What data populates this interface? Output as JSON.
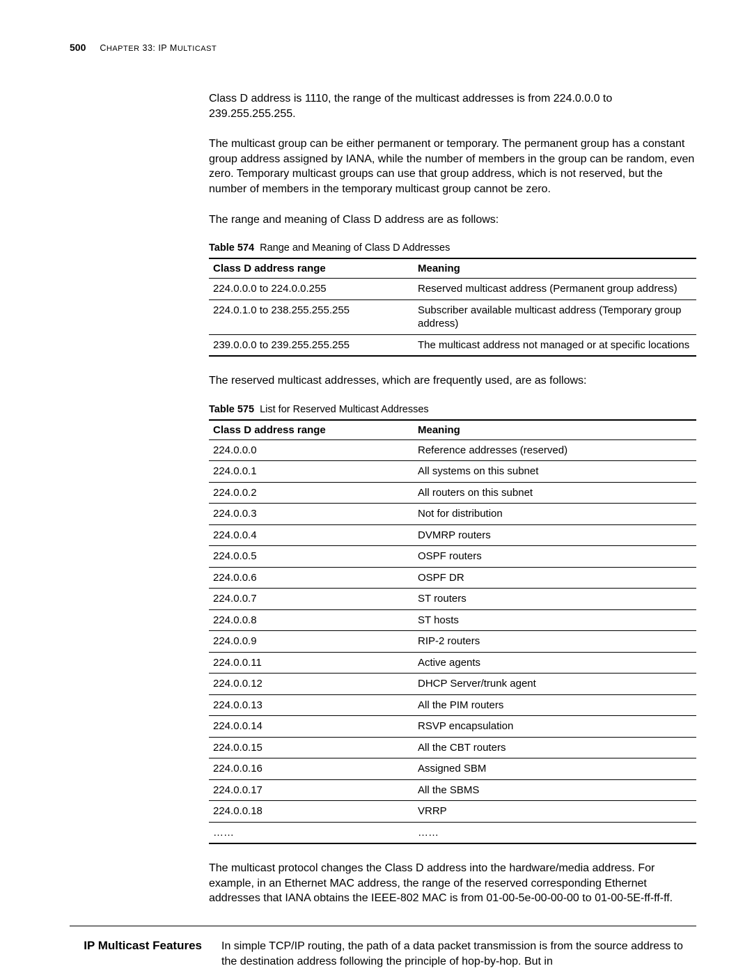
{
  "header": {
    "page_number": "500",
    "chapter_prefix": "C",
    "chapter_rest": "HAPTER",
    "chapter_num": " 33: IP M",
    "chapter_tail": "ULTICAST"
  },
  "paragraphs": {
    "p1": "Class D address is 1110, the range of the multicast addresses is from 224.0.0.0 to 239.255.255.255.",
    "p2": "The multicast group can be either permanent or temporary. The permanent group has a constant group address assigned by IANA, while the number of members in the group can be random, even zero. Temporary multicast groups can use that group address, which is not reserved, but the number of members in the temporary multicast group cannot be zero.",
    "p3": "The range and meaning of Class D address are as follows:",
    "p4": "The reserved multicast addresses, which are frequently used, are as follows:",
    "p5": "The multicast protocol changes the Class D address into the hardware/media address. For example, in an Ethernet MAC address, the range of the reserved corresponding Ethernet addresses that IANA obtains the IEEE-802 MAC is from 01-00-5e-00-00-00 to 01-00-5E-ff-ff-ff."
  },
  "table574": {
    "label": "Table 574",
    "caption": "Range and Meaning of Class D Addresses",
    "col1": "Class D address range",
    "col2": "Meaning",
    "rows": [
      {
        "range": "224.0.0.0 to 224.0.0.255",
        "meaning": "Reserved multicast address (Permanent group address)"
      },
      {
        "range": "224.0.1.0 to 238.255.255.255",
        "meaning": "Subscriber available multicast address (Temporary group address)"
      },
      {
        "range": "239.0.0.0 to 239.255.255.255",
        "meaning": "The multicast address not managed or at specific locations"
      }
    ]
  },
  "table575": {
    "label": "Table 575",
    "caption": "List for Reserved Multicast Addresses",
    "col1": "Class D address range",
    "col2": "Meaning",
    "rows": [
      {
        "range": "224.0.0.0",
        "meaning": "Reference addresses (reserved)"
      },
      {
        "range": "224.0.0.1",
        "meaning": "All systems on this subnet"
      },
      {
        "range": "224.0.0.2",
        "meaning": "All routers on this subnet"
      },
      {
        "range": "224.0.0.3",
        "meaning": "Not for distribution"
      },
      {
        "range": "224.0.0.4",
        "meaning": "DVMRP routers"
      },
      {
        "range": "224.0.0.5",
        "meaning": "OSPF routers"
      },
      {
        "range": "224.0.0.6",
        "meaning": "OSPF DR"
      },
      {
        "range": "224.0.0.7",
        "meaning": "ST routers"
      },
      {
        "range": "224.0.0.8",
        "meaning": "ST hosts"
      },
      {
        "range": "224.0.0.9",
        "meaning": "RIP-2 routers"
      },
      {
        "range": "224.0.0.11",
        "meaning": "Active agents"
      },
      {
        "range": "224.0.0.12",
        "meaning": "DHCP Server/trunk agent"
      },
      {
        "range": "224.0.0.13",
        "meaning": "All the PIM routers"
      },
      {
        "range": "224.0.0.14",
        "meaning": "RSVP encapsulation"
      },
      {
        "range": "224.0.0.15",
        "meaning": "All the CBT routers"
      },
      {
        "range": "224.0.0.16",
        "meaning": "Assigned SBM"
      },
      {
        "range": "224.0.0.17",
        "meaning": "All the SBMS"
      },
      {
        "range": "224.0.0.18",
        "meaning": "VRRP"
      },
      {
        "range": "……",
        "meaning": "……"
      }
    ]
  },
  "section": {
    "heading": "IP Multicast Features",
    "body": "In simple TCP/IP routing, the path of a data packet transmission is from the source address to the destination address following the principle of hop-by-hop. But in"
  }
}
